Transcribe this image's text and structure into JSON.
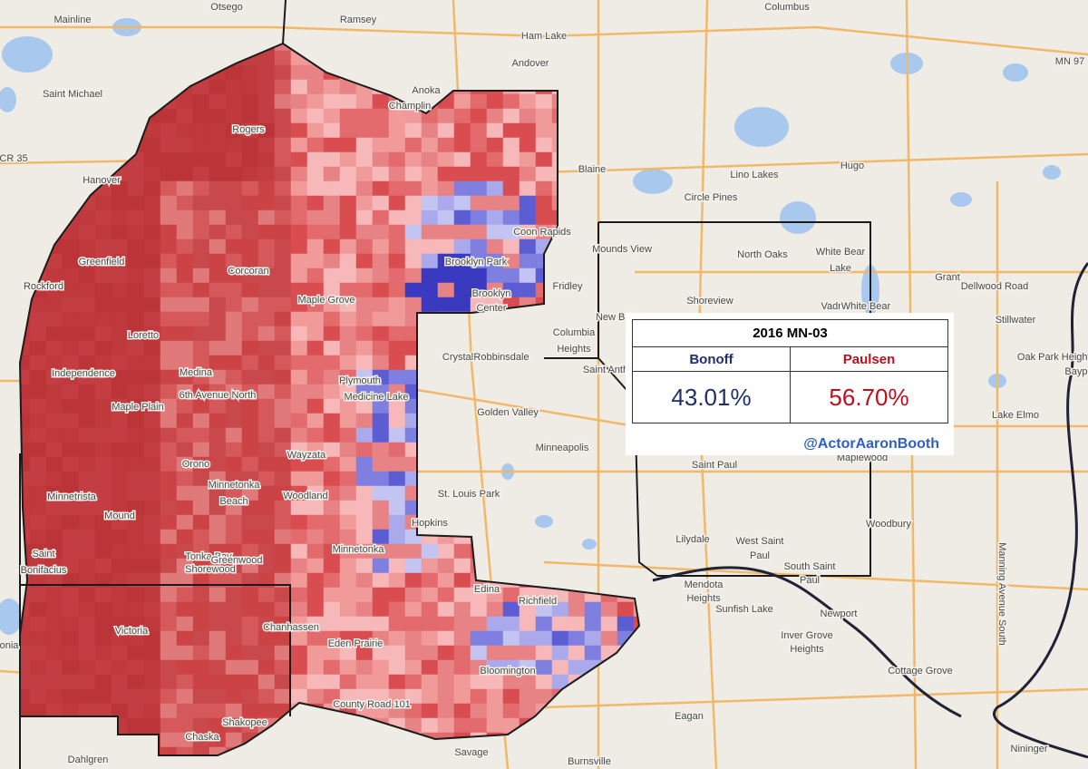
{
  "map": {
    "places": [
      "Otsego",
      "Mainline",
      "Ramsey",
      "Columbus",
      "MN 97",
      "Ham Lake",
      "Andover",
      "Saint Michael",
      "Anoka",
      "Champlin",
      "Rogers",
      "CR 35",
      "Blaine",
      "Lino Lakes",
      "Hugo",
      "Hanover",
      "Circle Pines",
      "Coon Rapids",
      "Mounds View",
      "North Oaks",
      "White Bear",
      "Lake",
      "Brooklyn Park",
      "Greenfield",
      "Corcoran",
      "Grant",
      "Dellwood Road",
      "Fridley",
      "Shoreview",
      "Rockford",
      "Brooklyn",
      "Center",
      "Maple Grove",
      "Vadnais",
      "White Bear",
      "New Brighton",
      "Stillwater",
      "Columbia",
      "Heights",
      "Loretto",
      "Crystal",
      "Robbinsdale",
      "Saint Anth",
      "Medina",
      "Independence",
      "Oak Park Heights",
      "Baypo",
      "Plymouth",
      "Medicine Lake",
      "Maple Plain",
      "6th Avenue North",
      "Golden Valley",
      "Lake Elmo",
      "Minneapolis",
      "Wayzata",
      "Orono",
      "Maplewood",
      "Saint Paul",
      "St. Louis Park",
      "Woodland",
      "Minnetrista",
      "Minnetonka",
      "Beach",
      "Mound",
      "Hopkins",
      "Woodbury",
      "Lilydale",
      "West Saint",
      "Paul",
      "Saint",
      "Bonifacius",
      "Tonka Bay",
      "Greenwood",
      "Shorewood",
      "Minnetonka",
      "South Saint",
      "Paul",
      "Edina",
      "Mendota",
      "Heights",
      "Richfield",
      "Sunfish Lake",
      "Newport",
      "Victoria",
      "Chanhassen",
      "Eden Prairie",
      "Inver Grove",
      "Heights",
      "Bloomington",
      "Cottage Grove",
      "County Road 101",
      "Eagan",
      "Shakopee",
      "Chaska",
      "Dahlgren",
      "Savage",
      "Burnsville",
      "Nininger",
      "Manning Avenue South",
      "onia"
    ],
    "table": {
      "title": "2016 MN-03",
      "headers": [
        "Bonoff",
        "Paulsen"
      ],
      "values": [
        "43.01%",
        "56.70%"
      ],
      "credit": "@ActorAaronBooth"
    }
  }
}
